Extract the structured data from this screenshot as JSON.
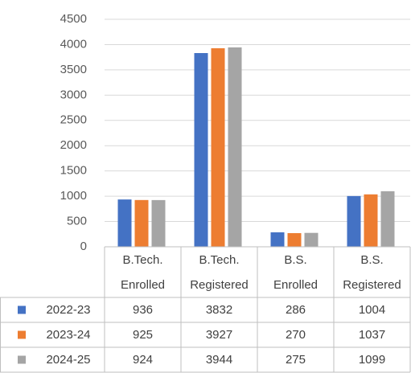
{
  "chart_data": {
    "type": "bar",
    "categories": [
      "B.Tech. Enrolled",
      "B.Tech. Registered",
      "B.S. Enrolled",
      "B.S. Registered"
    ],
    "series": [
      {
        "name": "2022-23",
        "color": "#4472c4",
        "values": [
          936,
          3832,
          286,
          1004
        ]
      },
      {
        "name": "2023-24",
        "color": "#ed7d31",
        "values": [
          925,
          3927,
          270,
          1037
        ]
      },
      {
        "name": "2024-25",
        "color": "#a5a5a5",
        "values": [
          924,
          3944,
          275,
          1099
        ]
      }
    ],
    "ylim": [
      0,
      4500
    ],
    "yticks": [
      0,
      500,
      1000,
      1500,
      2000,
      2500,
      3000,
      3500,
      4000,
      4500
    ],
    "grid": true,
    "data_table": true
  }
}
